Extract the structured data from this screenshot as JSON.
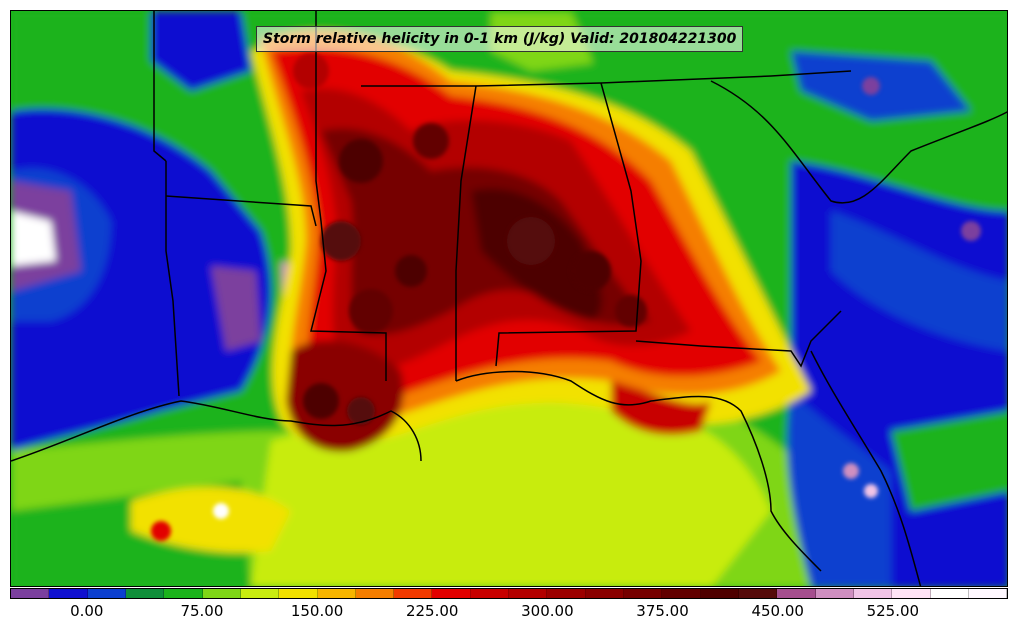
{
  "title": "Storm relative helicity in 0-1 km (J/kg) Valid: 201804221300",
  "colorbar": {
    "min": -50,
    "max": 600,
    "step": 25,
    "colors": [
      "#7b3f9e",
      "#1010d0",
      "#0c3fcf",
      "#0f8f3a",
      "#1bb31b",
      "#7fd617",
      "#c8ec10",
      "#f2e100",
      "#f7b500",
      "#f57e00",
      "#f23a00",
      "#e20000",
      "#c80000",
      "#b30000",
      "#9c0000",
      "#8a0000",
      "#760000",
      "#620000",
      "#4e0000",
      "#550a0a",
      "#a54e8e",
      "#cf8fc0",
      "#f1c4e6",
      "#ffe3f5",
      "#ffffff",
      "#fff8ff"
    ],
    "tick_labels": [
      "0.00",
      "75.00",
      "150.00",
      "225.00",
      "300.00",
      "375.00",
      "450.00",
      "525.00"
    ],
    "tick_values": [
      0,
      75,
      150,
      225,
      300,
      375,
      450,
      525
    ]
  }
}
